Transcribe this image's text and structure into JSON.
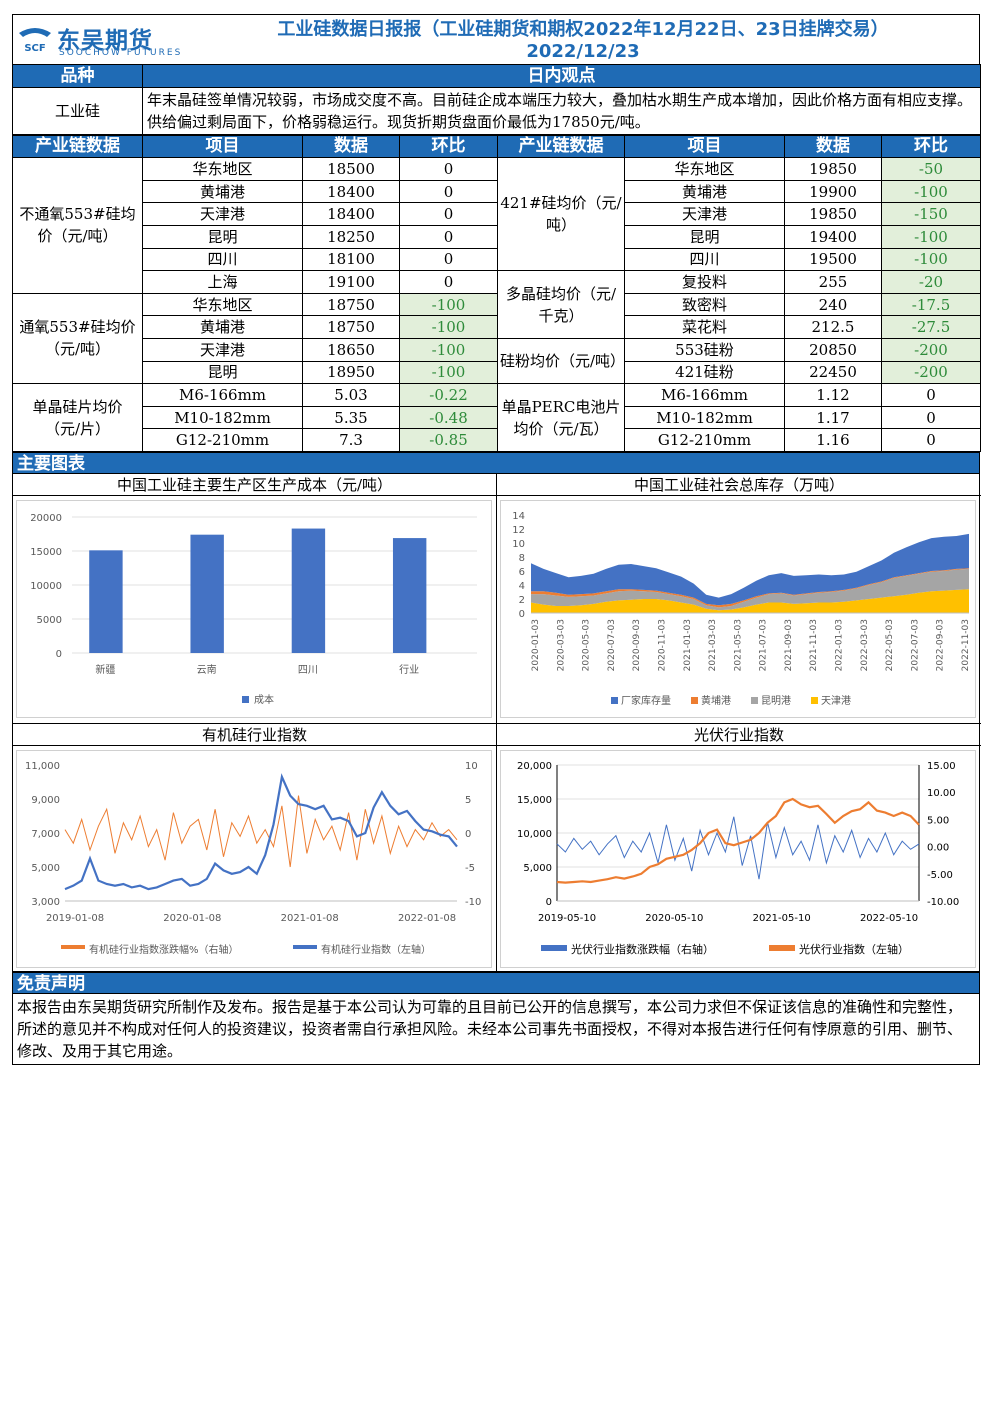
{
  "header": {
    "logo_cn": "东吴期货",
    "logo_en": "SOOCHOW FUTURES",
    "logo_mark": "SCF",
    "title": "工业硅数据日报报（工业硅期货和期权2022年12月22日、23日挂牌交易）",
    "date": "2022/12/23"
  },
  "view": {
    "col1": "品种",
    "col2": "日内观点",
    "product": "工业硅",
    "text": "年末晶硅签单情况较弱，市场成交度不高。目前硅企成本端压力较大，叠加枯水期生产成本增加，因此价格方面有相应支撑。供给偏过剩局面下，价格弱稳运行。现货折期货盘面价最低为17850元/吨。"
  },
  "chain": {
    "h1": "产业链数据",
    "h2": "项目",
    "h3": "数据",
    "h4": "环比",
    "h5": "产业链数据",
    "h6": "项目",
    "h7": "数据",
    "h8": "环比",
    "leftCats": [
      "不通氧553#硅均价（元/吨）",
      "通氧553#硅均价（元/吨）",
      "单晶硅片均价（元/片）"
    ],
    "rightCats": [
      "421#硅均价（元/吨）",
      "多晶硅均价（元/千克）",
      "硅粉均价（元/吨）",
      "单晶PERC电池片均价（元/瓦）"
    ],
    "rows": [
      {
        "li": "华东地区",
        "lv": "18500",
        "lc": "0",
        "ri": "华东地区",
        "rv": "19850",
        "rc": "-50"
      },
      {
        "li": "黄埔港",
        "lv": "18400",
        "lc": "0",
        "ri": "黄埔港",
        "rv": "19900",
        "rc": "-100"
      },
      {
        "li": "天津港",
        "lv": "18400",
        "lc": "0",
        "ri": "天津港",
        "rv": "19850",
        "rc": "-150"
      },
      {
        "li": "昆明",
        "lv": "18250",
        "lc": "0",
        "ri": "昆明",
        "rv": "19400",
        "rc": "-100"
      },
      {
        "li": "四川",
        "lv": "18100",
        "lc": "0",
        "ri": "四川",
        "rv": "19500",
        "rc": "-100"
      },
      {
        "li": "上海",
        "lv": "19100",
        "lc": "0",
        "ri": "复投料",
        "rv": "255",
        "rc": "-20"
      },
      {
        "li": "华东地区",
        "lv": "18750",
        "lc": "-100",
        "ri": "致密料",
        "rv": "240",
        "rc": "-17.5"
      },
      {
        "li": "黄埔港",
        "lv": "18750",
        "lc": "-100",
        "ri": "菜花料",
        "rv": "212.5",
        "rc": "-27.5"
      },
      {
        "li": "天津港",
        "lv": "18650",
        "lc": "-100",
        "ri": "553硅粉",
        "rv": "20850",
        "rc": "-200"
      },
      {
        "li": "昆明",
        "lv": "18950",
        "lc": "-100",
        "ri": "421硅粉",
        "rv": "22450",
        "rc": "-200"
      },
      {
        "li": "M6-166mm",
        "lv": "5.03",
        "lc": "-0.22",
        "ri": "M6-166mm",
        "rv": "1.12",
        "rc": "0"
      },
      {
        "li": "M10-182mm",
        "lv": "5.35",
        "lc": "-0.48",
        "ri": "M10-182mm",
        "rv": "1.17",
        "rc": "0"
      },
      {
        "li": "G12-210mm",
        "lv": "7.3",
        "lc": "-0.85",
        "ri": "G12-210mm",
        "rv": "1.16",
        "rc": "0"
      }
    ]
  },
  "charts_bar": "主要图表",
  "chart_data": [
    {
      "type": "bar",
      "title": "中国工业硅主要生产区生产成本（元/吨）",
      "categories": [
        "新疆",
        "云南",
        "四川",
        "行业"
      ],
      "series": [
        {
          "name": "成本",
          "values": [
            15100,
            17400,
            18300,
            16900
          ],
          "color": "#4472c4"
        }
      ],
      "yticks": [
        "0",
        "5000",
        "10000",
        "15000",
        "20000"
      ],
      "ylim": [
        0,
        20000
      ],
      "legend": "bottom"
    },
    {
      "type": "area",
      "title": "中国工业硅社会总库存（万吨）",
      "xticks": [
        "2020-01-03",
        "2020-03-03",
        "2020-05-03",
        "2020-07-03",
        "2020-09-03",
        "2020-11-03",
        "2021-01-03",
        "2021-03-03",
        "2021-05-03",
        "2021-07-03",
        "2021-09-03",
        "2021-11-03",
        "2022-01-03",
        "2022-03-03",
        "2022-05-03",
        "2022-07-03",
        "2022-09-03",
        "2022-11-03"
      ],
      "yticks": [
        "0",
        "2",
        "4",
        "6",
        "8",
        "10",
        "12",
        "14"
      ],
      "ylim": [
        0,
        14
      ],
      "x": [
        0,
        1,
        2,
        3,
        4,
        5,
        6,
        7,
        8,
        9,
        10,
        11,
        12,
        13,
        14,
        15,
        16,
        17,
        18,
        19,
        20,
        21,
        22,
        23,
        24,
        25,
        26,
        27,
        28,
        29,
        30,
        31,
        32,
        33,
        34,
        35
      ],
      "series": [
        {
          "name": "天津港",
          "color": "#ffc000",
          "values": [
            1.5,
            1.2,
            1.0,
            1.0,
            1.1,
            1.3,
            1.6,
            1.8,
            1.9,
            2.0,
            2.0,
            1.8,
            1.5,
            1.2,
            0.6,
            0.4,
            0.5,
            0.8,
            1.2,
            1.5,
            1.5,
            1.3,
            1.4,
            1.5,
            1.5,
            1.6,
            1.8,
            2.0,
            2.2,
            2.4,
            2.6,
            2.9,
            3.1,
            3.2,
            3.3,
            3.4
          ]
        },
        {
          "name": "昆明港",
          "color": "#a5a5a5",
          "values": [
            1.2,
            1.5,
            1.5,
            1.3,
            1.3,
            1.2,
            1.2,
            1.3,
            1.3,
            1.1,
            1.0,
            0.9,
            0.9,
            0.8,
            0.5,
            0.4,
            0.5,
            0.8,
            1.0,
            1.2,
            1.3,
            1.2,
            1.3,
            1.4,
            1.5,
            1.6,
            1.7,
            2.0,
            2.2,
            2.6,
            2.7,
            2.7,
            2.8,
            2.8,
            2.9,
            2.9
          ]
        },
        {
          "name": "黄埔港",
          "color": "#ed7d31",
          "values": [
            0.4,
            0.4,
            0.4,
            0.3,
            0.3,
            0.3,
            0.3,
            0.3,
            0.2,
            0.2,
            0.2,
            0.2,
            0.2,
            0.2,
            0.2,
            0.3,
            0.3,
            0.2,
            0.2,
            0.1,
            0.1,
            0.1,
            0.1,
            0.1,
            0.1,
            0.1,
            0.1,
            0.1,
            0.1,
            0.1,
            0.1,
            0.1,
            0.1,
            0.1,
            0.1,
            0.1
          ]
        },
        {
          "name": "厂家库存量",
          "color": "#4472c4",
          "values": [
            4.0,
            3.2,
            2.8,
            2.5,
            2.6,
            2.8,
            3.2,
            3.5,
            3.6,
            3.4,
            3.2,
            2.9,
            2.6,
            2.0,
            1.3,
            1.1,
            1.4,
            1.8,
            2.2,
            2.6,
            2.8,
            2.7,
            2.6,
            2.5,
            2.3,
            2.2,
            2.3,
            2.6,
            3.0,
            3.5,
            4.0,
            4.4,
            4.7,
            4.8,
            4.7,
            4.9
          ]
        }
      ],
      "legend": "bottom"
    },
    {
      "type": "line",
      "title": "有机硅行业指数",
      "xticks": [
        "2019-01-08",
        "2020-01-08",
        "2021-01-08",
        "2022-01-08"
      ],
      "yticks_left": [
        "3,000",
        "5,000",
        "7,000",
        "9,000",
        "11,000"
      ],
      "ylim_left": [
        3000,
        11000
      ],
      "yticks_right": [
        "-10",
        "-5",
        "0",
        "5",
        "10"
      ],
      "ylim_right": [
        -10,
        10
      ],
      "x": [
        0,
        1,
        2,
        3,
        4,
        5,
        6,
        7,
        8,
        9,
        10,
        11,
        12,
        13,
        14,
        15,
        16,
        17,
        18,
        19,
        20,
        21,
        22,
        23,
        24,
        25,
        26,
        27,
        28,
        29,
        30,
        31,
        32,
        33,
        34,
        35,
        36,
        37,
        38,
        39,
        40,
        41,
        42,
        43,
        44,
        45,
        46,
        47
      ],
      "series": [
        {
          "name": "有机硅行业指数涨跌幅%（右轴）",
          "axis": "right",
          "color": "#ed7d31",
          "values": [
            0.5,
            -1.5,
            2.0,
            -2.5,
            1.0,
            3.5,
            -3.0,
            1.5,
            -1.0,
            2.5,
            -2.0,
            0.5,
            -4.0,
            3.0,
            -1.5,
            1.0,
            2.0,
            -2.5,
            3.5,
            -3.5,
            1.5,
            -0.5,
            2.5,
            -1.5,
            0.5,
            -2.0,
            4.0,
            -5.0,
            5.5,
            -3.0,
            2.0,
            -1.0,
            1.0,
            -2.5,
            3.0,
            -4.0,
            3.5,
            -1.5,
            2.5,
            -3.0,
            1.0,
            -2.0,
            0.5,
            -1.0,
            1.5,
            -0.5,
            0.5,
            -1.0
          ]
        },
        {
          "name": "有机硅行业指数（左轴）",
          "axis": "left",
          "color": "#4472c4",
          "values": [
            3700,
            3900,
            4200,
            5500,
            4200,
            4000,
            3900,
            4000,
            3800,
            3900,
            3700,
            3800,
            4000,
            4200,
            4300,
            3900,
            4000,
            4300,
            5200,
            4800,
            4600,
            4700,
            5000,
            4600,
            5700,
            7500,
            10300,
            9200,
            8700,
            8600,
            8400,
            8600,
            7800,
            7900,
            7700,
            6800,
            7000,
            8500,
            9400,
            8600,
            8100,
            8300,
            7700,
            7200,
            7100,
            6900,
            6800,
            6200
          ]
        }
      ],
      "legend": "bottom"
    },
    {
      "type": "line",
      "title": "光伏行业指数",
      "xticks": [
        "2019-05-10",
        "2020-05-10",
        "2021-05-10",
        "2022-05-10"
      ],
      "yticks_left": [
        "0",
        "5,000",
        "10,000",
        "15,000",
        "20,000"
      ],
      "ylim_left": [
        0,
        20000
      ],
      "yticks_right": [
        "-10.00",
        "-5.00",
        "0.00",
        "5.00",
        "10.00",
        "15.00"
      ],
      "ylim_right": [
        -10,
        15
      ],
      "x": [
        0,
        1,
        2,
        3,
        4,
        5,
        6,
        7,
        8,
        9,
        10,
        11,
        12,
        13,
        14,
        15,
        16,
        17,
        18,
        19,
        20,
        21,
        22,
        23,
        24,
        25,
        26,
        27,
        28,
        29,
        30,
        31,
        32,
        33,
        34,
        35,
        36,
        37,
        38,
        39,
        40,
        41,
        42,
        43
      ],
      "series": [
        {
          "name": "光伏行业指数涨跌幅（右轴）",
          "axis": "right",
          "color": "#4472c4",
          "values": [
            0.5,
            -1.0,
            1.5,
            -0.5,
            1.0,
            -1.5,
            0.5,
            2.0,
            -2.0,
            1.0,
            -1.0,
            2.5,
            -3.0,
            4.0,
            -2.5,
            1.5,
            -4.5,
            3.0,
            -1.5,
            2.5,
            -1.0,
            5.5,
            -3.5,
            2.0,
            -6.0,
            4.5,
            -2.0,
            3.5,
            -1.5,
            1.0,
            -2.5,
            4.0,
            -3.0,
            2.0,
            -1.0,
            3.0,
            -2.0,
            1.5,
            -1.0,
            2.5,
            -1.5,
            1.0,
            -0.5,
            0.5
          ]
        },
        {
          "name": "光伏行业指数（左轴）",
          "axis": "left",
          "color": "#ed7d31",
          "values": [
            2800,
            2700,
            2800,
            2900,
            2800,
            3000,
            3200,
            3500,
            3300,
            3600,
            4000,
            5000,
            5400,
            6200,
            6500,
            6800,
            7500,
            8500,
            10000,
            10500,
            8500,
            8200,
            8600,
            9000,
            10000,
            11500,
            12500,
            14500,
            15000,
            14200,
            13800,
            14000,
            12800,
            11500,
            12500,
            13200,
            13500,
            14500,
            13300,
            13000,
            12500,
            13000,
            12500,
            11200
          ]
        }
      ],
      "legend": "bottom"
    }
  ],
  "disclaimer": {
    "title": "免责声明",
    "text": "本报告由东吴期货研究所制作及发布。报告是基于本公司认为可靠的且目前已公开的信息撰写，本公司力求但不保证该信息的准确性和完整性，所述的意见并不构成对任何人的投资建议，投资者需自行承担风险。未经本公司事先书面授权，不得对本报告进行任何有悖原意的引用、删节、修改、及用于其它用途。"
  }
}
